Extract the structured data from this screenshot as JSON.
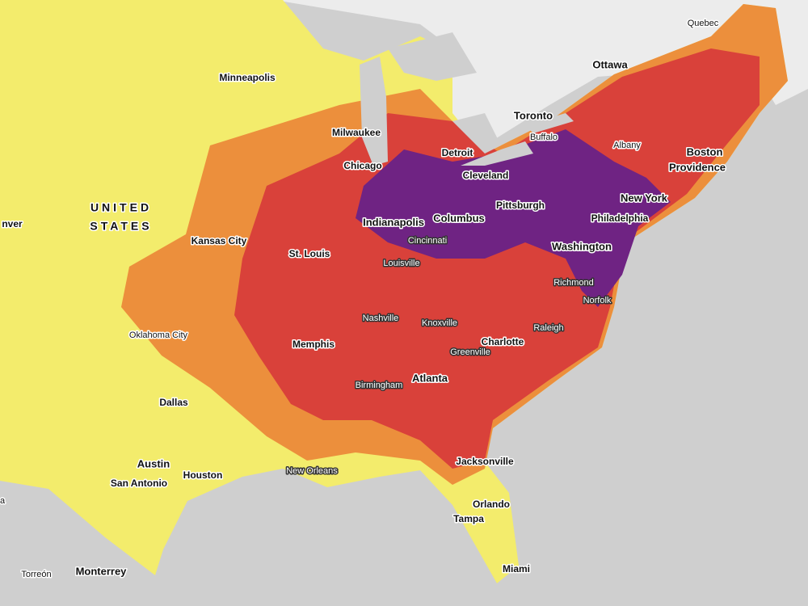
{
  "country": [
    "UNITED",
    "STATES"
  ],
  "places": [
    "Quebec",
    "Ottawa",
    "Toronto",
    "Buffalo",
    "Albany",
    "Boston",
    "Providence",
    "Minneapolis",
    "Milwaukee",
    "Detroit",
    "Chicago",
    "Cleveland",
    "nver",
    "Kansas City",
    "Indianapolis",
    "Columbus",
    "Pittsburgh",
    "New York",
    "Philadelphia",
    "St. Louis",
    "Cincinnati",
    "Louisville",
    "Washington",
    "Richmond",
    "Norfolk",
    "Oklahoma City",
    "Nashville",
    "Knoxville",
    "Raleigh",
    "Memphis",
    "Charlotte",
    "Greenville",
    "Birmingham",
    "Atlanta",
    "Dallas",
    "Austin",
    "Houston",
    "San Antonio",
    "New Orleans",
    "Jacksonville",
    "Orlando",
    "Tampa",
    "Miami",
    "Torreón",
    "Monterrey",
    "a"
  ]
}
